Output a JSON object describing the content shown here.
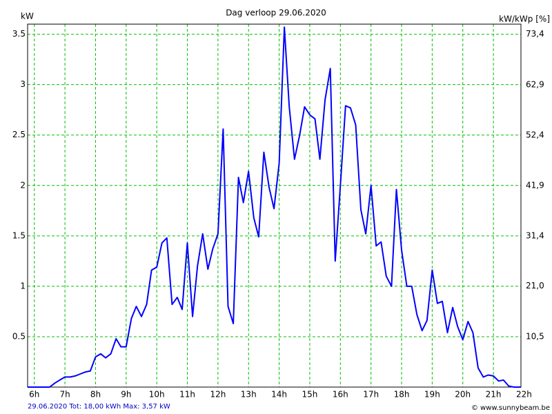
{
  "chart_data": {
    "type": "line",
    "title": "Dag  verloop 29.06.2020",
    "y_label": "kW",
    "y2_label": "kW/kWp [%]",
    "footer": "29.06.2020 Tot: 18,00 kWh Max: 3,57 kW",
    "credit": "© www.sunnybeam.be",
    "color": "#0000ff",
    "grid_color": "#00c000",
    "grid": true,
    "xlim": [
      5.78,
      21.9
    ],
    "ylim": [
      0,
      3.6
    ],
    "y2lim": [
      0,
      75.5
    ],
    "xticks": [
      {
        "value": 6,
        "label": "6h"
      },
      {
        "value": 7,
        "label": "7h"
      },
      {
        "value": 8,
        "label": "8h"
      },
      {
        "value": 9,
        "label": "9h"
      },
      {
        "value": 10,
        "label": "10h"
      },
      {
        "value": 11,
        "label": "11h"
      },
      {
        "value": 12,
        "label": "12h"
      },
      {
        "value": 13,
        "label": "13h"
      },
      {
        "value": 14,
        "label": "14h"
      },
      {
        "value": 15,
        "label": "15h"
      },
      {
        "value": 16,
        "label": "16h"
      },
      {
        "value": 17,
        "label": "17h"
      },
      {
        "value": 18,
        "label": "18h"
      },
      {
        "value": 19,
        "label": "19h"
      },
      {
        "value": 20,
        "label": "20h"
      },
      {
        "value": 21,
        "label": "21h"
      },
      {
        "value": 22,
        "label": "22h"
      }
    ],
    "yticks": [
      0.5,
      1,
      1.5,
      2,
      2.5,
      3,
      3.5
    ],
    "y2ticks": [
      {
        "value": 10.5,
        "label": "10,5"
      },
      {
        "value": 21.0,
        "label": "21,0"
      },
      {
        "value": 31.4,
        "label": "31,4"
      },
      {
        "value": 41.9,
        "label": "41,9"
      },
      {
        "value": 52.4,
        "label": "52,4"
      },
      {
        "value": 62.9,
        "label": "62,9"
      },
      {
        "value": 73.4,
        "label": "73,4"
      }
    ],
    "x": [
      5.78,
      6.5,
      6.67,
      6.83,
      7.0,
      7.17,
      7.33,
      7.5,
      7.67,
      7.83,
      8.0,
      8.17,
      8.33,
      8.5,
      8.67,
      8.83,
      9.0,
      9.17,
      9.33,
      9.5,
      9.67,
      9.83,
      10.0,
      10.17,
      10.33,
      10.5,
      10.67,
      10.83,
      11.0,
      11.17,
      11.33,
      11.5,
      11.67,
      11.83,
      12.0,
      12.17,
      12.33,
      12.5,
      12.67,
      12.83,
      13.0,
      13.17,
      13.33,
      13.5,
      13.67,
      13.83,
      14.0,
      14.17,
      14.33,
      14.5,
      14.67,
      14.83,
      15.0,
      15.17,
      15.33,
      15.5,
      15.67,
      15.83,
      16.0,
      16.17,
      16.33,
      16.5,
      16.67,
      16.83,
      17.0,
      17.17,
      17.33,
      17.5,
      17.67,
      17.83,
      18.0,
      18.17,
      18.33,
      18.5,
      18.67,
      18.83,
      19.0,
      19.17,
      19.33,
      19.5,
      19.67,
      19.83,
      20.0,
      20.17,
      20.33,
      20.5,
      20.67,
      20.83,
      21.0,
      21.17,
      21.33,
      21.5,
      21.67,
      21.9
    ],
    "values": [
      0,
      0,
      0.04,
      0.07,
      0.1,
      0.1,
      0.11,
      0.13,
      0.15,
      0.16,
      0.3,
      0.33,
      0.29,
      0.33,
      0.48,
      0.4,
      0.4,
      0.68,
      0.8,
      0.7,
      0.82,
      1.16,
      1.19,
      1.43,
      1.48,
      0.82,
      0.89,
      0.77,
      1.43,
      0.7,
      1.2,
      1.52,
      1.17,
      1.37,
      1.52,
      2.56,
      0.8,
      0.63,
      2.08,
      1.83,
      2.14,
      1.68,
      1.49,
      2.33,
      1.98,
      1.77,
      2.22,
      3.57,
      2.78,
      2.26,
      2.5,
      2.78,
      2.7,
      2.66,
      2.26,
      2.85,
      3.16,
      1.25,
      2.0,
      2.79,
      2.77,
      2.6,
      1.76,
      1.52,
      2.0,
      1.4,
      1.44,
      1.1,
      1.0,
      1.96,
      1.36,
      1.0,
      1.0,
      0.72,
      0.56,
      0.66,
      1.16,
      0.83,
      0.85,
      0.54,
      0.79,
      0.6,
      0.47,
      0.65,
      0.54,
      0.19,
      0.1,
      0.12,
      0.11,
      0.06,
      0.07,
      0.01,
      0,
      0
    ]
  }
}
